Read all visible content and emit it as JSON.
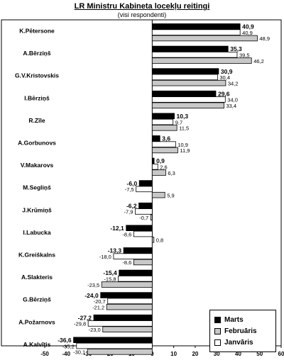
{
  "chart_data": {
    "type": "bar",
    "orientation": "horizontal",
    "title": "LR Ministru Kabineta locekļu reitingi",
    "subtitle": "(visi respondenti)",
    "categories": [
      "K.Pētersone",
      "A.Bērziņš",
      "G.V.Kristovskis",
      "I.Bērziņš",
      "R.Zīle",
      "A.Gorbunovs",
      "V.Makarovs",
      "M.Segliņš",
      "J.Krūmiņš",
      "I.Labucka",
      "K.Greiškalns",
      "A.Slakteris",
      "G.Bērziņš",
      "A.Požarnovs",
      "A.Kalvītis"
    ],
    "series": [
      {
        "name": "Marts",
        "color": "#000000",
        "values": [
          40.9,
          35.3,
          30.9,
          29.6,
          10.3,
          3.6,
          0.9,
          -6.0,
          -6.2,
          -12.1,
          -13.3,
          -15.4,
          -24.0,
          -27.2,
          -36.6
        ],
        "labels": [
          "40,9",
          "35,3",
          "30,9",
          "29,6",
          "10,3",
          "3,6",
          "0,9",
          "-6,0",
          "-6,2",
          "-12,1",
          "-13,3",
          "-15,4",
          "-24,0",
          "-27,2",
          "-36,6"
        ]
      },
      {
        "name": "Janvāris",
        "color": "#ffffff",
        "values": [
          40.9,
          39.5,
          30.4,
          34.0,
          9.7,
          10.9,
          2.6,
          -7.5,
          -7.9,
          -8.6,
          -18.0,
          -15.8,
          -20.7,
          -29.8,
          -35.2
        ],
        "labels": [
          "40,9",
          "39,5",
          "30,4",
          "34,0",
          "9,7",
          "10,9",
          "2,6",
          "-7,5",
          "-7,9",
          "-8,6",
          "-18,0",
          "-15,8",
          "-20,7",
          "-29,8",
          "-35,2"
        ]
      },
      {
        "name": "Februāris",
        "color": "#c8c8c8",
        "values": [
          48.9,
          46.2,
          34.2,
          33.4,
          11.5,
          11.9,
          6.3,
          5.9,
          -0.7,
          0.8,
          -8.6,
          -23.5,
          -21.2,
          -23.0,
          -30.1
        ],
        "labels": [
          "48,9",
          "46,2",
          "34,2",
          "33,4",
          "11,5",
          "11,9",
          "6,3",
          "5,9",
          "-0,7",
          "0,8",
          "-8,6",
          "-23,5",
          "-21,2",
          "-23,0",
          "-30,1"
        ]
      }
    ],
    "legend_order": [
      "Marts",
      "Februāris",
      "Janvāris"
    ],
    "xlim": [
      -50,
      60
    ],
    "xticks": [
      -50,
      -40,
      -30,
      -20,
      -10,
      0,
      10,
      20,
      30,
      40,
      50,
      60
    ],
    "legend_position": "bottom-right",
    "grid": false
  }
}
